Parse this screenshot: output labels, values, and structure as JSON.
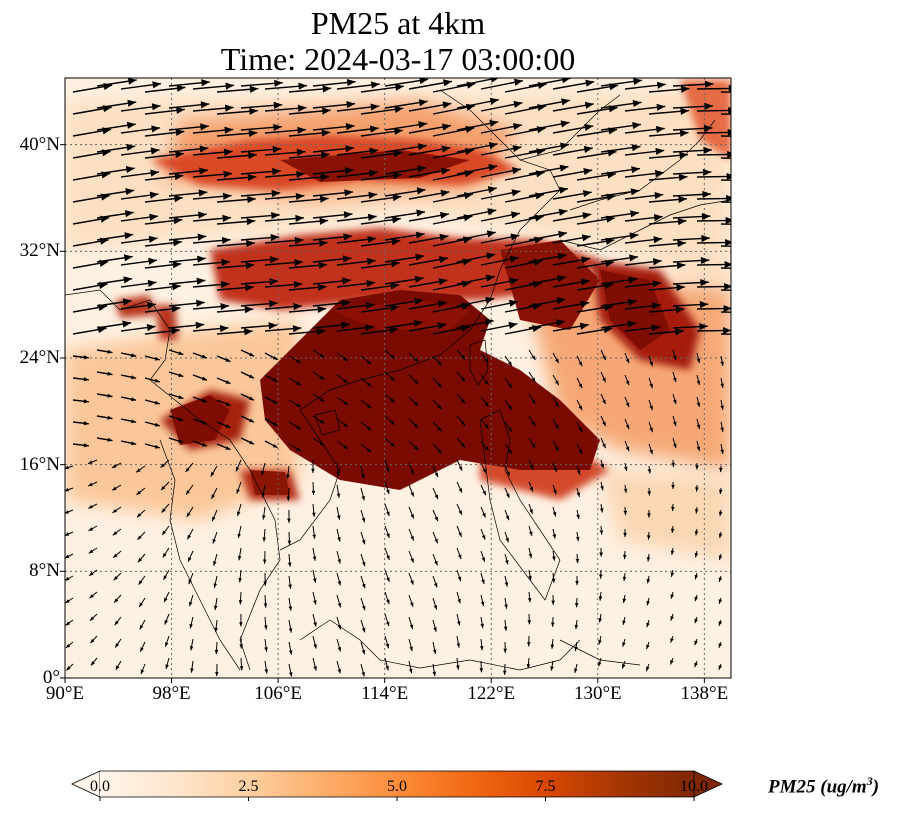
{
  "map": {
    "title_line1": "PM25 at 4km",
    "title_line2": "Time: 2024-03-17 03:00:00",
    "lon_range": [
      90,
      140
    ],
    "lat_range": [
      0,
      45
    ],
    "lon_ticks": [
      "90°E",
      "98°E",
      "106°E",
      "114°E",
      "122°E",
      "130°E",
      "138°E"
    ],
    "lon_tick_values": [
      90,
      98,
      106,
      114,
      122,
      130,
      138
    ],
    "lat_ticks": [
      "0°",
      "8°N",
      "16°N",
      "24°N",
      "32°N",
      "40°N"
    ],
    "lat_tick_values": [
      0,
      8,
      16,
      24,
      32,
      40
    ],
    "gridlines": "dotted",
    "field": "PM25",
    "wind_vectors": "shown"
  },
  "colorbar": {
    "label_main": "PM25 (ug/m",
    "label_sup": "3",
    "label_close": ")",
    "range": [
      0.0,
      10.0
    ],
    "extend": "both",
    "ticks": [
      "0.0",
      "2.5",
      "5.0",
      "7.5",
      "10.0"
    ],
    "tick_values": [
      0.0,
      2.5,
      5.0,
      7.5,
      10.0
    ],
    "colormap": [
      "#fff5eb",
      "#fee6ce",
      "#fdd0a2",
      "#fdae6b",
      "#fd8d3c",
      "#f16913",
      "#d94801",
      "#a63603",
      "#7f2704"
    ]
  }
}
